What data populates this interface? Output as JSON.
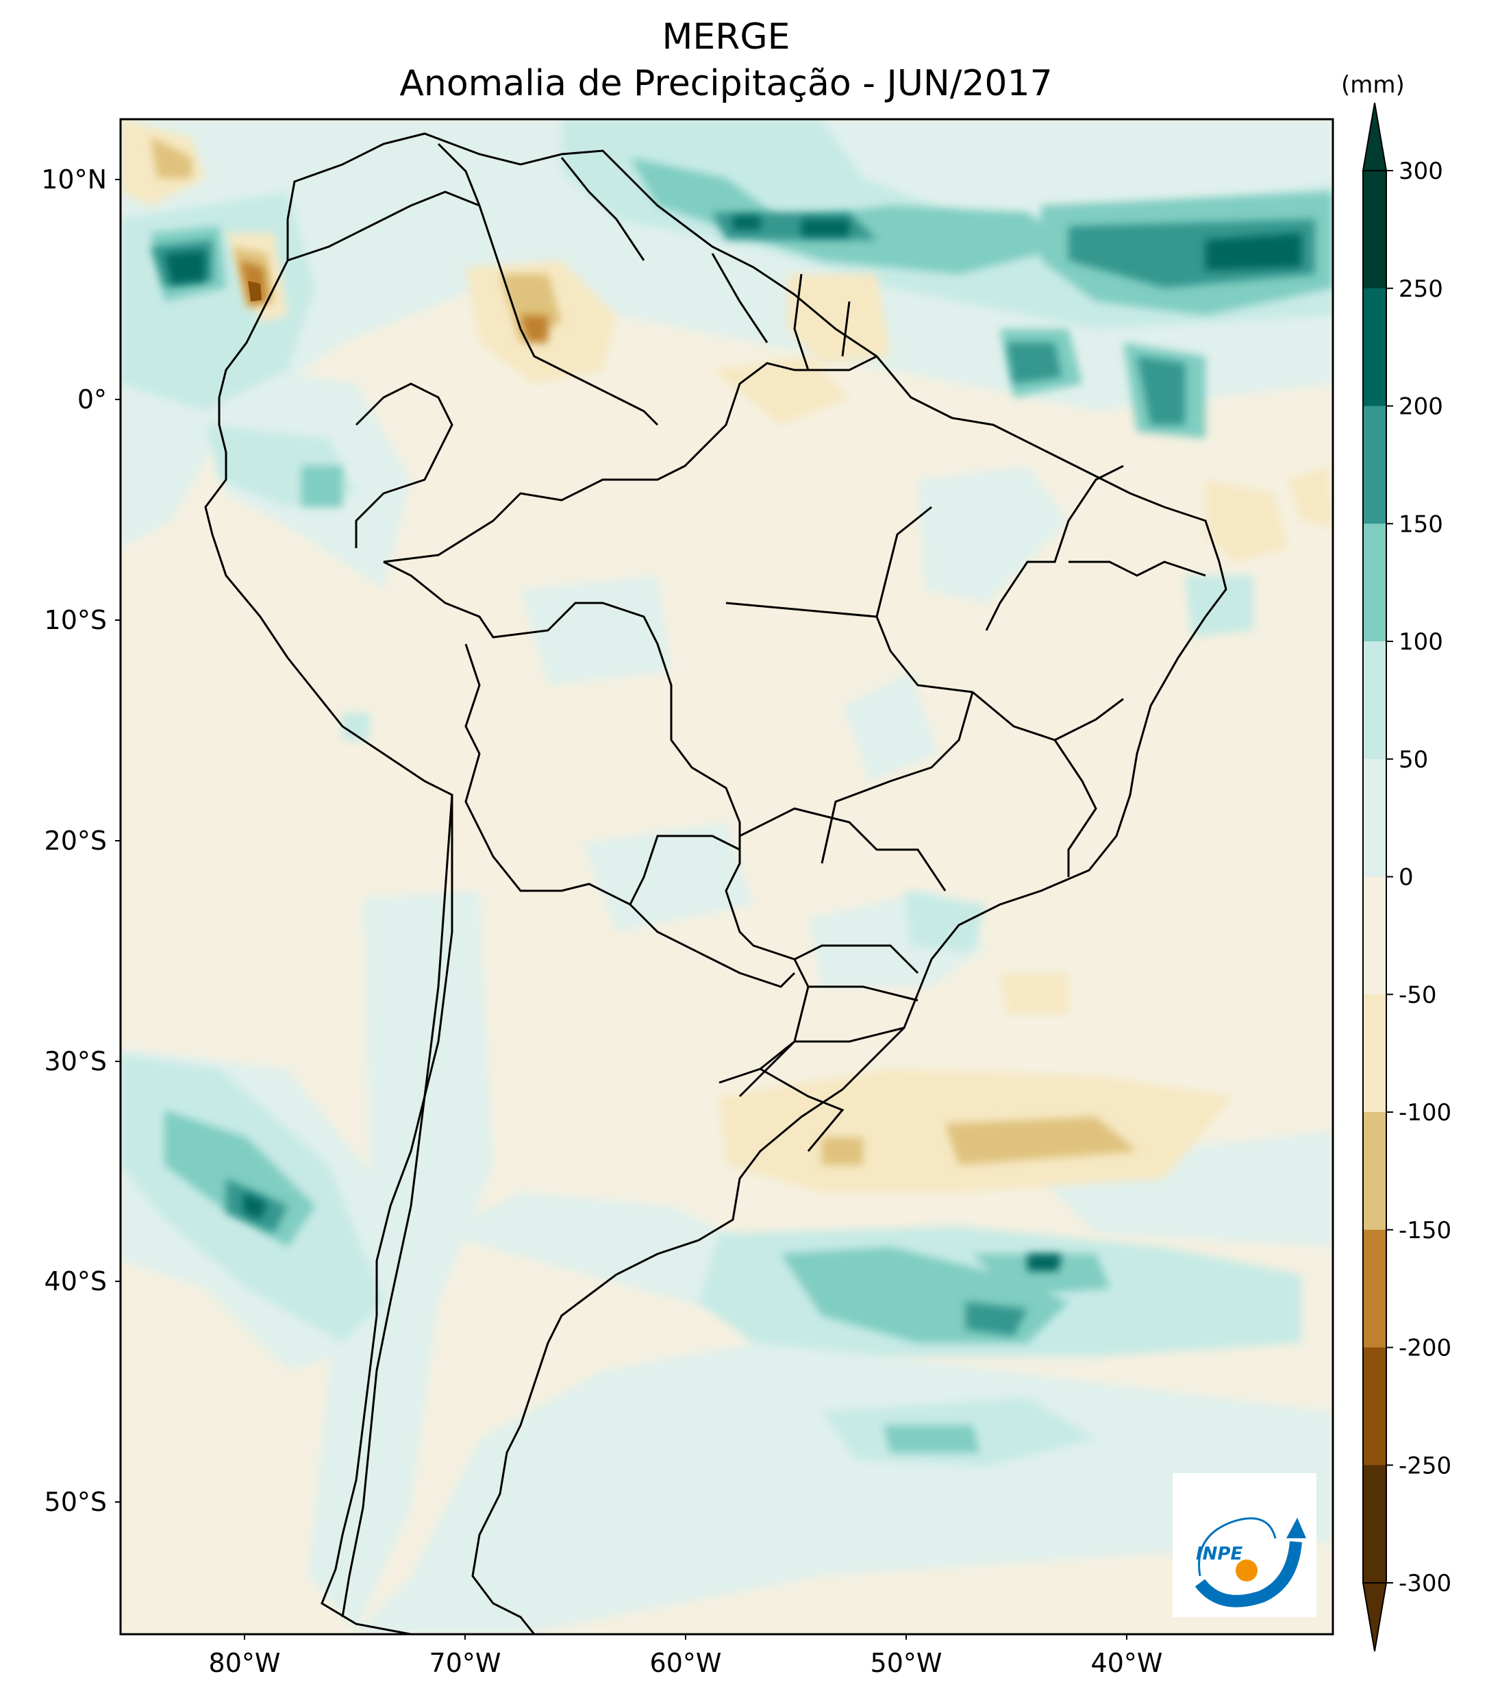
{
  "title": "MERGE",
  "subtitle": "Anomalia de Precipitação - JUN/2017",
  "colorbar": {
    "unit": "(mm)",
    "ticks": [
      "300",
      "250",
      "200",
      "150",
      "100",
      "50",
      "0",
      "-50",
      "-100",
      "-150",
      "-200",
      "-250",
      "-300"
    ],
    "colors": [
      "#003c30",
      "#01665e",
      "#35978f",
      "#80cdc1",
      "#c7eae5",
      "#e0f0ec",
      "#f5f0e0",
      "#f6e8c3",
      "#dfc27d",
      "#bf812d",
      "#8c510a",
      "#543005"
    ]
  },
  "axes": {
    "lat_labels": [
      "10°N",
      "0°",
      "10°S",
      "20°S",
      "30°S",
      "40°S",
      "50°S"
    ],
    "lon_labels": [
      "80°W",
      "70°W",
      "60°W",
      "50°W",
      "40°W"
    ]
  },
  "logo": {
    "text": "INPE",
    "colors": {
      "blue": "#0072bc",
      "orange": "#f39200"
    }
  }
}
